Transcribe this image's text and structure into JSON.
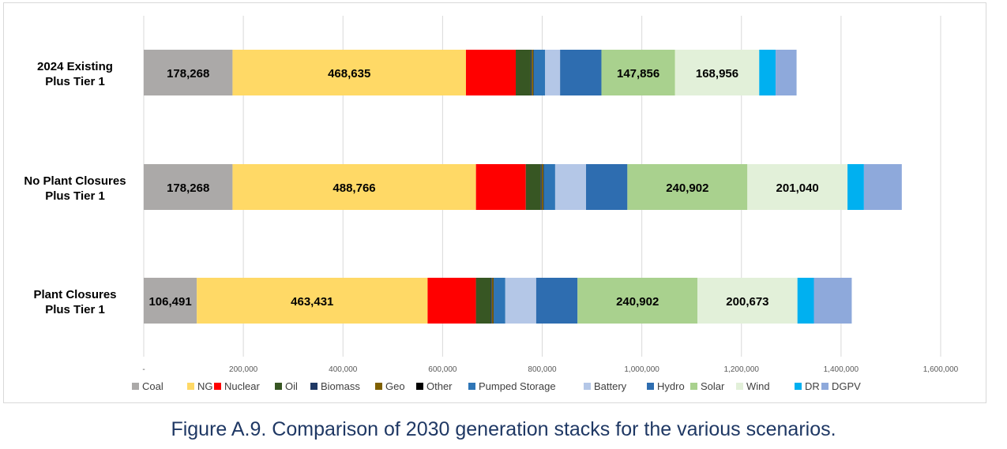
{
  "caption": "Figure A.9. Comparison of 2030 generation stacks for the various scenarios.",
  "chart_data": {
    "type": "bar",
    "orientation": "horizontal",
    "stacked": true,
    "xlim": [
      0,
      1600000
    ],
    "grid": true,
    "legend_position": "bottom",
    "tick_labels": [
      "-",
      "200,000",
      "400,000",
      "600,000",
      "800,000",
      "1,000,000",
      "1,200,000",
      "1,400,000",
      "1,600,000"
    ],
    "categories": [
      {
        "line1": "2024 Existing",
        "line2": "Plus Tier 1"
      },
      {
        "line1": "No Plant Closures",
        "line2": "Plus Tier 1"
      },
      {
        "line1": "Plant Closures",
        "line2": "Plus Tier 1"
      }
    ],
    "series": [
      {
        "name": "Coal",
        "color": "#ABA9A8",
        "values": [
          178268,
          178268,
          106491
        ],
        "labels": [
          "178,268",
          "178,268",
          "106,491"
        ]
      },
      {
        "name": "NG",
        "color": "#FFD966",
        "values": [
          468635,
          488766,
          463431
        ],
        "labels": [
          "468,635",
          "488,766",
          "463,431"
        ]
      },
      {
        "name": "Nuclear",
        "color": "#FF0000",
        "values": [
          100000,
          100000,
          97000
        ],
        "labels": [
          "",
          "",
          ""
        ]
      },
      {
        "name": "Oil",
        "color": "#375623",
        "values": [
          30000,
          30000,
          30000
        ],
        "labels": [
          "",
          "",
          ""
        ]
      },
      {
        "name": "Biomass",
        "color": "#1F3864",
        "values": [
          2000,
          2000,
          2000
        ],
        "labels": [
          "",
          "",
          ""
        ]
      },
      {
        "name": "Geo",
        "color": "#7F6000",
        "values": [
          3000,
          3000,
          3000
        ],
        "labels": [
          "",
          "",
          ""
        ]
      },
      {
        "name": "Other",
        "color": "#000000",
        "values": [
          1000,
          1000,
          1000
        ],
        "labels": [
          "",
          "",
          ""
        ]
      },
      {
        "name": "Pumped Storage",
        "color": "#2E75B6",
        "values": [
          23000,
          23000,
          23000
        ],
        "labels": [
          "",
          "",
          ""
        ]
      },
      {
        "name": "Battery",
        "color": "#B4C7E7",
        "values": [
          30000,
          62000,
          62000
        ],
        "labels": [
          "",
          "",
          ""
        ]
      },
      {
        "name": "Hydro",
        "color": "#2E6DB0",
        "values": [
          83000,
          83000,
          83000
        ],
        "labels": [
          "",
          "",
          ""
        ]
      },
      {
        "name": "Solar",
        "color": "#A9D18E",
        "values": [
          147856,
          240902,
          240902
        ],
        "labels": [
          "147,856",
          "240,902",
          "240,902"
        ]
      },
      {
        "name": "Wind",
        "color": "#E2F0D9",
        "values": [
          168956,
          201040,
          200673
        ],
        "labels": [
          "168,956",
          "201,040",
          "200,673"
        ]
      },
      {
        "name": "DR",
        "color": "#00B0F0",
        "values": [
          33000,
          33000,
          33000
        ],
        "labels": [
          "",
          "",
          ""
        ]
      },
      {
        "name": "DGPV",
        "color": "#8EA9DB",
        "values": [
          42000,
          76000,
          76000
        ],
        "labels": [
          "",
          "",
          ""
        ]
      }
    ]
  }
}
